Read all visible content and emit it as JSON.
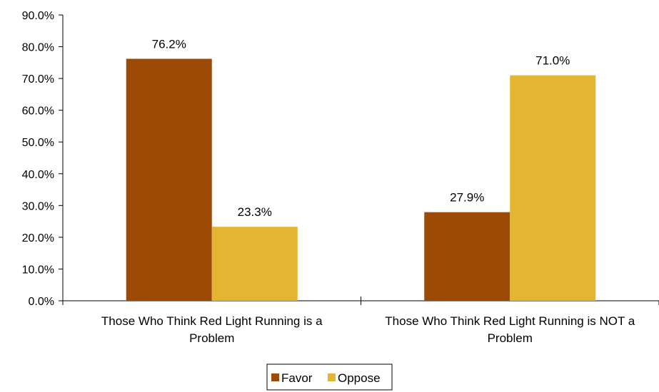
{
  "chart_data": {
    "type": "bar",
    "categories": [
      [
        "Those Who Think Red Light Running is a",
        "Problem"
      ],
      [
        "Those Who Think Red Light Running is NOT a",
        "Problem"
      ]
    ],
    "series": [
      {
        "name": "Favor",
        "color": "#9C4A06",
        "values": [
          76.2,
          27.9
        ],
        "labels": [
          "76.2%",
          "27.9%"
        ]
      },
      {
        "name": "Oppose",
        "color": "#E3B531",
        "values": [
          23.3,
          71.0
        ],
        "labels": [
          "23.3%",
          "71.0%"
        ]
      }
    ],
    "ylim": [
      0,
      90
    ],
    "yticks": [
      0,
      10,
      20,
      30,
      40,
      50,
      60,
      70,
      80,
      90
    ],
    "ytick_labels": [
      "0.0%",
      "10.0%",
      "20.0%",
      "30.0%",
      "40.0%",
      "50.0%",
      "60.0%",
      "70.0%",
      "80.0%",
      "90.0%"
    ],
    "legend_position": "bottom-center",
    "grid": false
  }
}
